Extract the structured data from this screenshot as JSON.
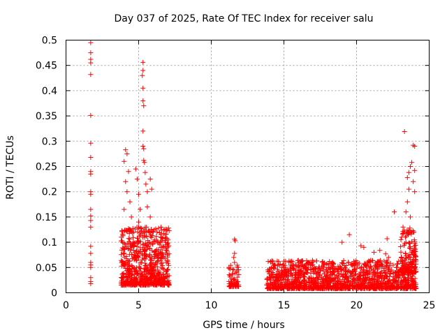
{
  "chart_data": {
    "type": "scatter",
    "title": "Day 037 of 2025, Rate Of TEC Index for receiver salu",
    "xlabel": "GPS time / hours",
    "ylabel": "ROTI / TECUs",
    "xlim": [
      0,
      25
    ],
    "ylim": [
      0,
      0.5
    ],
    "x_ticks": [
      0,
      5,
      10,
      15,
      20,
      25
    ],
    "x_tick_labels": [
      "0",
      "5",
      "10",
      "15",
      "20",
      "25"
    ],
    "y_ticks": [
      0,
      0.05,
      0.1,
      0.15,
      0.2,
      0.25,
      0.3,
      0.35,
      0.4,
      0.45,
      0.5
    ],
    "y_tick_labels": [
      "0",
      "0.05",
      "0.1",
      "0.15",
      "0.2",
      "0.25",
      "0.3",
      "0.35",
      "0.4",
      "0.45",
      "0.5"
    ],
    "grid": true,
    "marker": "+",
    "series": [
      {
        "name": "ROTI",
        "color": "#ff0000",
        "points": [
          [
            1.7,
            0.495
          ],
          [
            1.7,
            0.475
          ],
          [
            1.7,
            0.462
          ],
          [
            1.7,
            0.455
          ],
          [
            1.7,
            0.432
          ],
          [
            1.7,
            0.351
          ],
          [
            1.7,
            0.296
          ],
          [
            1.7,
            0.268
          ],
          [
            1.7,
            0.24
          ],
          [
            1.7,
            0.235
          ],
          [
            1.7,
            0.2
          ],
          [
            1.7,
            0.195
          ],
          [
            1.7,
            0.165
          ],
          [
            1.7,
            0.152
          ],
          [
            1.7,
            0.143
          ],
          [
            1.7,
            0.13
          ],
          [
            1.7,
            0.092
          ],
          [
            1.7,
            0.078
          ],
          [
            1.7,
            0.06
          ],
          [
            1.7,
            0.055
          ],
          [
            1.7,
            0.05
          ],
          [
            1.7,
            0.03
          ],
          [
            1.7,
            0.022
          ],
          [
            1.7,
            0.018
          ],
          [
            4.1,
            0.283
          ],
          [
            4.2,
            0.275
          ],
          [
            4.0,
            0.26
          ],
          [
            4.3,
            0.24
          ],
          [
            4.1,
            0.22
          ],
          [
            4.2,
            0.2
          ],
          [
            4.4,
            0.18
          ],
          [
            4.0,
            0.165
          ],
          [
            4.5,
            0.15
          ],
          [
            4.8,
            0.245
          ],
          [
            4.9,
            0.225
          ],
          [
            5.0,
            0.195
          ],
          [
            5.1,
            0.165
          ],
          [
            5.0,
            0.14
          ],
          [
            5.3,
            0.456
          ],
          [
            5.3,
            0.44
          ],
          [
            5.25,
            0.43
          ],
          [
            5.3,
            0.405
          ],
          [
            5.3,
            0.38
          ],
          [
            5.35,
            0.37
          ],
          [
            5.3,
            0.32
          ],
          [
            5.3,
            0.29
          ],
          [
            5.35,
            0.285
          ],
          [
            5.35,
            0.262
          ],
          [
            5.4,
            0.258
          ],
          [
            5.45,
            0.238
          ],
          [
            5.5,
            0.215
          ],
          [
            5.6,
            0.2
          ],
          [
            5.8,
            0.225
          ],
          [
            5.9,
            0.205
          ],
          [
            5.6,
            0.17
          ],
          [
            5.8,
            0.15
          ],
          [
            6.0,
            0.12
          ],
          [
            6.5,
            0.078
          ],
          [
            6.7,
            0.072
          ],
          [
            6.9,
            0.06
          ],
          [
            7.0,
            0.045
          ],
          [
            11.6,
            0.106
          ],
          [
            11.65,
            0.103
          ],
          [
            11.6,
            0.078
          ],
          [
            11.55,
            0.07
          ],
          [
            11.6,
            0.06
          ],
          [
            19.5,
            0.115
          ],
          [
            19.0,
            0.1
          ],
          [
            20.3,
            0.093
          ],
          [
            20.5,
            0.09
          ],
          [
            21.2,
            0.08
          ],
          [
            21.6,
            0.084
          ],
          [
            22.1,
            0.107
          ],
          [
            22.0,
            0.077
          ],
          [
            22.2,
            0.07
          ],
          [
            22.6,
            0.16
          ],
          [
            23.3,
            0.319
          ],
          [
            23.9,
            0.292
          ],
          [
            24.0,
            0.29
          ],
          [
            23.8,
            0.258
          ],
          [
            23.7,
            0.25
          ],
          [
            23.6,
            0.238
          ],
          [
            24.0,
            0.242
          ],
          [
            23.5,
            0.228
          ],
          [
            23.9,
            0.22
          ],
          [
            23.6,
            0.205
          ],
          [
            23.5,
            0.18
          ],
          [
            24.0,
            0.2
          ],
          [
            23.4,
            0.16
          ],
          [
            23.7,
            0.15
          ],
          [
            23.2,
            0.13
          ],
          [
            23.8,
            0.12
          ],
          [
            23.1,
            0.11
          ],
          [
            23.4,
            0.1
          ]
        ],
        "dense_clusters": [
          {
            "x_range": [
              3.8,
              7.1
            ],
            "y_range": [
              0.015,
              0.13
            ],
            "approx_points": 700
          },
          {
            "x_range": [
              11.2,
              11.9
            ],
            "y_range": [
              0.012,
              0.055
            ],
            "approx_points": 70
          },
          {
            "x_range": [
              13.8,
              24.1
            ],
            "y_range": [
              0.008,
              0.065
            ],
            "approx_points": 1400
          },
          {
            "x_range": [
              23.0,
              24.1
            ],
            "y_range": [
              0.04,
              0.13
            ],
            "approx_points": 140
          }
        ]
      }
    ]
  }
}
